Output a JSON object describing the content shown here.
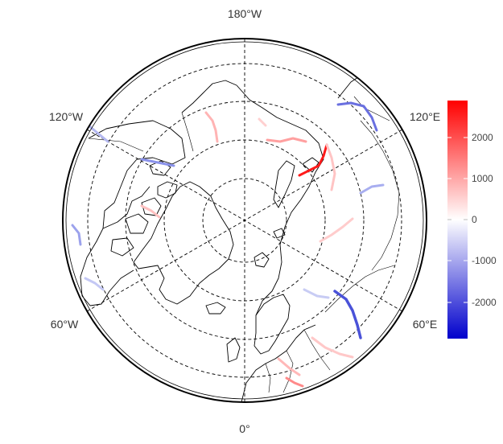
{
  "map": {
    "projection": "north polar stereographic",
    "lon_labels": {
      "top": "180°W",
      "upper_left": "120°W",
      "upper_right": "120°E",
      "lower_left": "60°W",
      "lower_right": "60°E",
      "bottom": "0°"
    },
    "graticule_style": "dashed",
    "colors": {
      "high": "#ff0000",
      "mid": "#ffffff",
      "low": "#0000cc",
      "coast": "#000000",
      "grid": "#000000"
    }
  },
  "legend": {
    "ticks": [
      "2000",
      "1000",
      "0",
      "-1000",
      "-2000"
    ],
    "range": [
      -2800,
      2800
    ]
  }
}
